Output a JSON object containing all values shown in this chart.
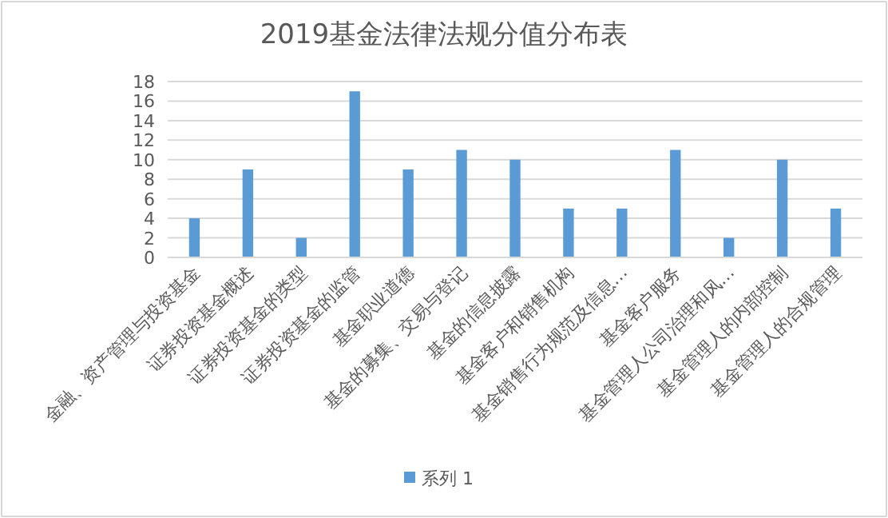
{
  "chart_data": {
    "type": "bar",
    "title": "2019基金法律法规分值分布表",
    "categories": [
      "金融、资产管理与投资基金",
      "证券投资基金概述",
      "证券投资基金的类型",
      "证券投资基金的监管",
      "基金职业道德",
      "基金的募集、交易与登记",
      "基金的信息披露",
      "基金客户和销售机构",
      "基金销售行为规范及信息…",
      "基金客户服务",
      "基金管理人公司治理和风…",
      "基金管理人的内部控制",
      "基金管理人的合规管理"
    ],
    "series": [
      {
        "name": "系列 1",
        "color": "#5b9bd5",
        "values": [
          4,
          9,
          2,
          17,
          9,
          11,
          10,
          5,
          5,
          11,
          2,
          10,
          5
        ]
      }
    ],
    "ylim": [
      0,
      18
    ],
    "yticks": [
      0,
      2,
      4,
      6,
      8,
      10,
      12,
      14,
      16,
      18
    ],
    "grid": "y",
    "legend": "bottom"
  }
}
